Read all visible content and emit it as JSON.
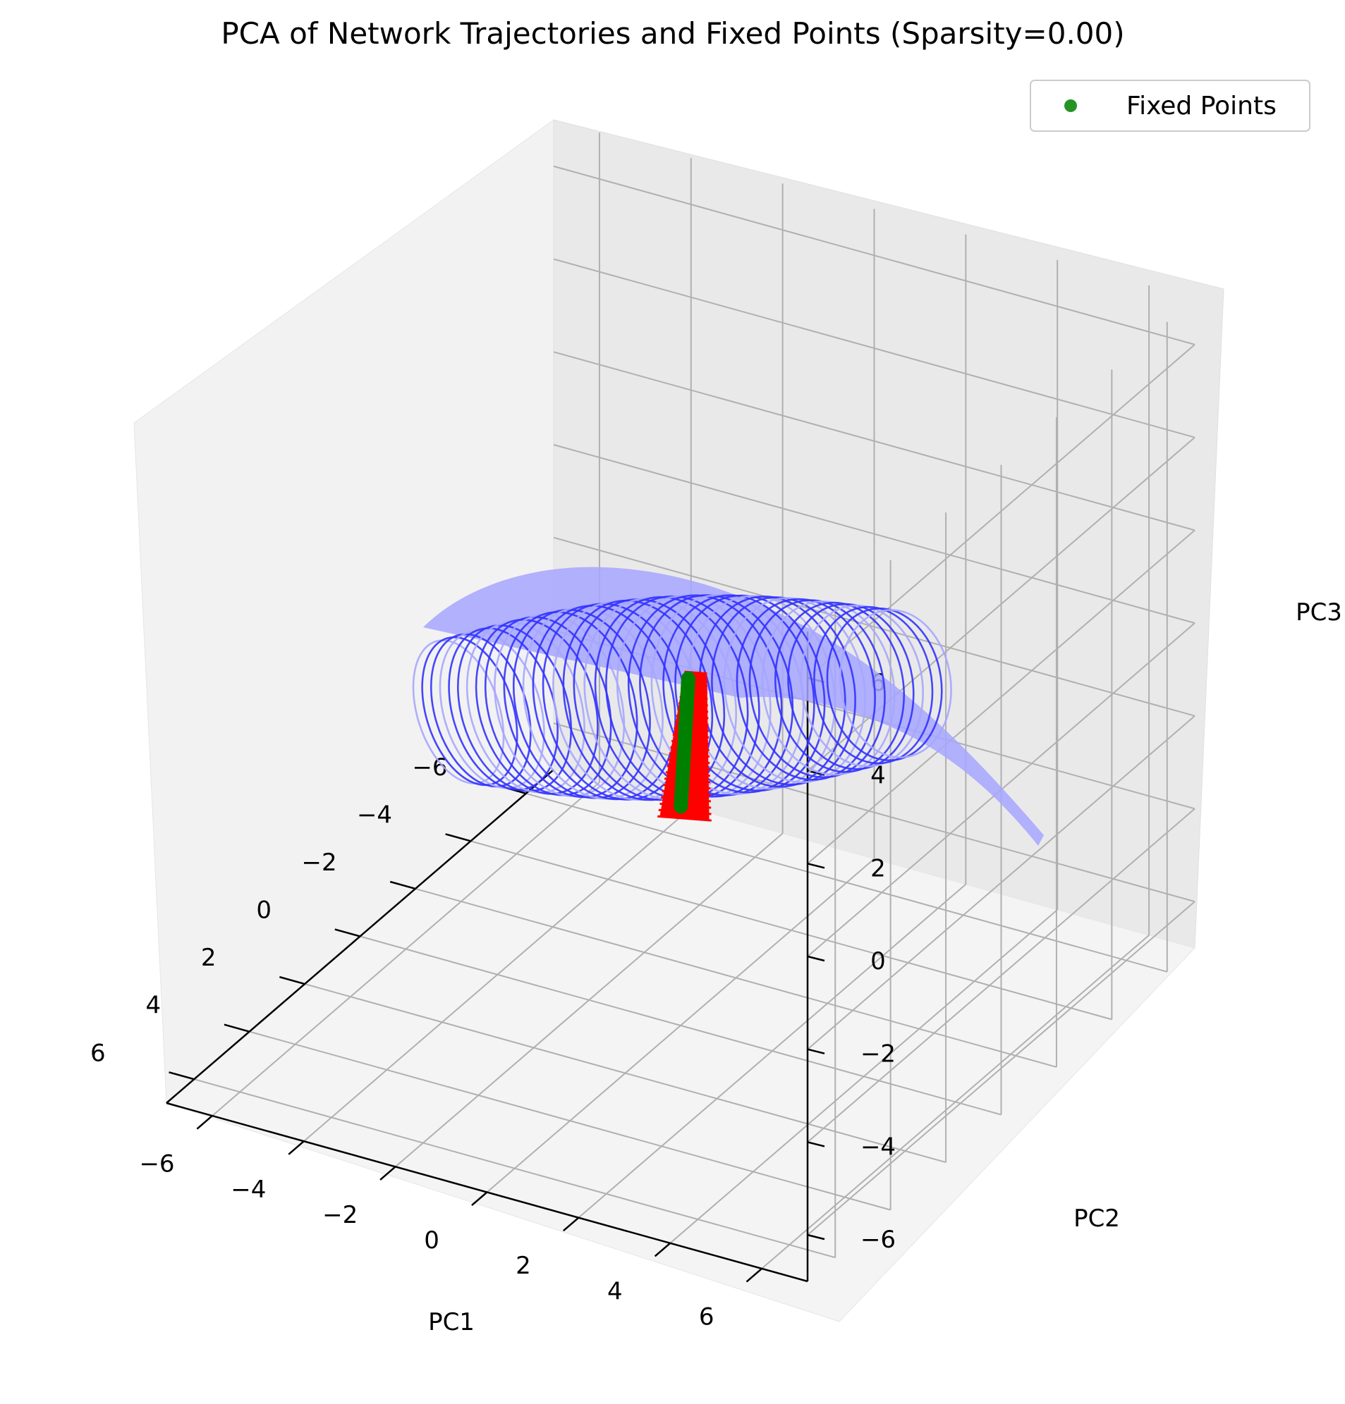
{
  "chart_data": {
    "type": "scatter",
    "projection": "3d",
    "title": "PCA of Network Trajectories and Fixed Points (Sparsity=0.00)",
    "xlabel": "PC1",
    "ylabel": "PC2",
    "zlabel": "PC3",
    "xlim": [
      -7,
      7
    ],
    "ylim": [
      -7,
      7
    ],
    "zlim": [
      -7,
      7
    ],
    "ticks": {
      "x": [
        "−6",
        "−4",
        "−2",
        "0",
        "2",
        "4",
        "6"
      ],
      "y": [
        "−6",
        "−4",
        "−2",
        "0",
        "2",
        "4",
        "6"
      ],
      "z": [
        "−6",
        "−4",
        "−2",
        "0",
        "2",
        "4",
        "6"
      ]
    },
    "grid": true,
    "legend": {
      "placement": "upper-right",
      "entries": [
        "Fixed Points"
      ]
    },
    "colors": {
      "trajectory": "#3333ff",
      "trajectory_light": "#a6a6ff",
      "fixed_points": "#008000",
      "fixed_band": "#ff0000"
    },
    "series": [
      {
        "kind": "trajectories",
        "color": "#3333ff",
        "count": 40
      },
      {
        "kind": "red-band",
        "color": "#ff0000",
        "from": [
          -2.2,
          -1.0,
          -0.8
        ],
        "to": [
          4.0,
          2.5,
          0.2
        ]
      },
      {
        "name": "Fixed Points",
        "kind": "fixed-points",
        "color": "#008000",
        "from": [
          -2.1,
          -1.1,
          -0.9
        ],
        "to": [
          3.8,
          2.3,
          0.3
        ]
      }
    ]
  }
}
